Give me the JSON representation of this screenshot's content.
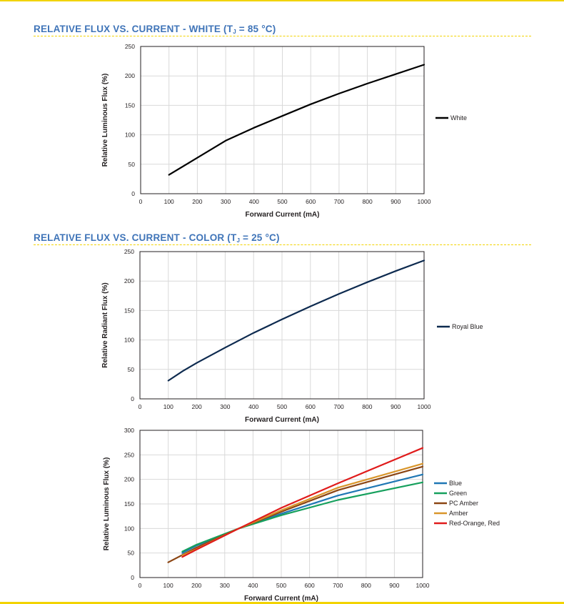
{
  "sections": [
    {
      "title_main": "RELATIVE FLUX VS. CURRENT - WHITE (T",
      "title_sub": "J",
      "title_tail": " = 85 °C)"
    },
    {
      "title_main": "RELATIVE FLUX VS. CURRENT - COLOR (T",
      "title_sub": "J",
      "title_tail": " = 25 °C)"
    }
  ],
  "chart_data": [
    {
      "type": "line",
      "title": "",
      "xlabel": "Forward Current (mA)",
      "ylabel": "Relative Luminous Flux (%)",
      "xlim": [
        0,
        1000
      ],
      "ylim": [
        0,
        250
      ],
      "xticks": [
        "0",
        "100",
        "200",
        "300",
        "400",
        "500",
        "600",
        "700",
        "800",
        "900",
        "1000"
      ],
      "yticks": [
        "0",
        "50",
        "100",
        "150",
        "200",
        "250"
      ],
      "grid": true,
      "legend_position": "right",
      "series": [
        {
          "name": "White",
          "color": "#000000",
          "x": [
            100,
            200,
            300,
            400,
            500,
            600,
            700,
            800,
            900,
            1000
          ],
          "y": [
            32,
            61,
            90,
            112,
            132,
            152,
            170,
            187,
            203,
            219
          ]
        }
      ]
    },
    {
      "type": "line",
      "title": "",
      "xlabel": "Forward Current (mA)",
      "ylabel": "Relative Radiant Flux (%)",
      "xlim": [
        0,
        1000
      ],
      "ylim": [
        0,
        250
      ],
      "xticks": [
        "0",
        "100",
        "200",
        "300",
        "400",
        "500",
        "600",
        "700",
        "800",
        "900",
        "1000"
      ],
      "yticks": [
        "0",
        "50",
        "100",
        "150",
        "200",
        "250"
      ],
      "grid": true,
      "legend_position": "right",
      "series": [
        {
          "name": "Royal Blue",
          "color": "#0d2a4f",
          "x": [
            100,
            150,
            200,
            300,
            400,
            500,
            600,
            700,
            800,
            900,
            1000
          ],
          "y": [
            31,
            47,
            61,
            87,
            112,
            135,
            157,
            178,
            198,
            217,
            235
          ]
        }
      ]
    },
    {
      "type": "line",
      "title": "",
      "xlabel": "Forward Current (mA)",
      "ylabel": "Relative Luminous Flux (%)",
      "xlim": [
        0,
        1000
      ],
      "ylim": [
        0,
        300
      ],
      "xticks": [
        "0",
        "100",
        "200",
        "300",
        "400",
        "500",
        "600",
        "700",
        "800",
        "900",
        "1000"
      ],
      "yticks": [
        "0",
        "50",
        "100",
        "150",
        "200",
        "250",
        "300"
      ],
      "grid": true,
      "legend_position": "right",
      "series": [
        {
          "name": "Blue",
          "color": "#1f77b4",
          "x": [
            150,
            200,
            350,
            500,
            700,
            1000
          ],
          "y": [
            50,
            65,
            100,
            130,
            167,
            210
          ]
        },
        {
          "name": "Green",
          "color": "#16a05d",
          "x": [
            150,
            200,
            350,
            500,
            700,
            1000
          ],
          "y": [
            53,
            67,
            100,
            127,
            158,
            194
          ]
        },
        {
          "name": "PC Amber",
          "color": "#8b4513",
          "x": [
            100,
            200,
            350,
            500,
            700,
            1000
          ],
          "y": [
            31,
            61,
            100,
            134,
            178,
            226
          ]
        },
        {
          "name": "Amber",
          "color": "#d9962b",
          "x": [
            150,
            200,
            350,
            500,
            700,
            1000
          ],
          "y": [
            45,
            58,
            100,
            137,
            183,
            232
          ]
        },
        {
          "name": "Red-Orange, Red",
          "color": "#e01b1b",
          "x": [
            150,
            200,
            350,
            500,
            700,
            1000
          ],
          "y": [
            42,
            57,
            100,
            142,
            192,
            264
          ]
        }
      ]
    }
  ]
}
